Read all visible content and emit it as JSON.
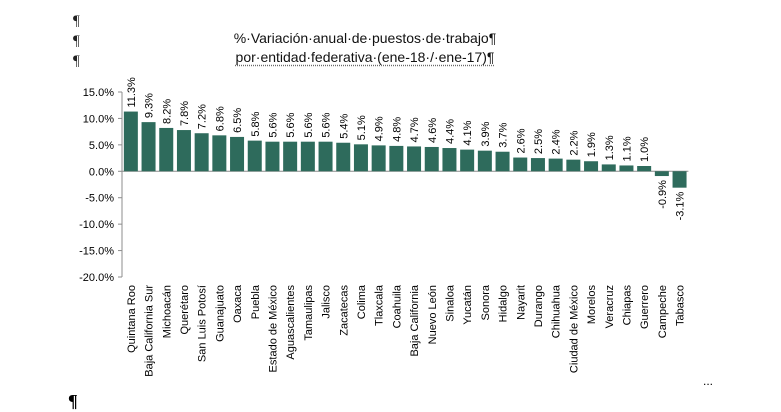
{
  "marks": {
    "pilcrow": "¶",
    "ellipsis": "..."
  },
  "chart_data": {
    "type": "bar",
    "title": "%·Variación·anual·de·puestos·de·trabajo¶",
    "subtitle": "por·entidad·federativa·(ene-18·/·ene-17)¶",
    "xlabel": "",
    "ylabel": "",
    "ylim": [
      -20,
      15
    ],
    "yticks": [
      "15.0%",
      "10.0%",
      "5.0%",
      "0.0%",
      "-5.0%",
      "-10.0%",
      "-15.0%",
      "-20.0%"
    ],
    "ytick_values": [
      15,
      10,
      5,
      0,
      -5,
      -10,
      -15,
      -20
    ],
    "categories": [
      "Quintana Roo",
      "Baja California Sur",
      "Michoacán",
      "Querétaro",
      "San Luis Potosí",
      "Guanajuato",
      "Oaxaca",
      "Puebla",
      "Estado de México",
      "Aguascalientes",
      "Tamaulipas",
      "Jalisco",
      "Zacatecas",
      "Colima",
      "Tlaxcala",
      "Coahuila",
      "Baja California",
      "Nuevo León",
      "Sinaloa",
      "Yucatán",
      "Sonora",
      "Hidalgo",
      "Nayarit",
      "Durango",
      "Chihuahua",
      "Ciudad de México",
      "Morelos",
      "Veracruz",
      "Chiapas",
      "Guerrero",
      "Campeche",
      "Tabasco"
    ],
    "values": [
      11.3,
      9.3,
      8.2,
      7.8,
      7.2,
      6.8,
      6.5,
      5.8,
      5.6,
      5.6,
      5.6,
      5.6,
      5.4,
      5.1,
      4.9,
      4.8,
      4.7,
      4.6,
      4.4,
      4.1,
      3.9,
      3.7,
      2.6,
      2.5,
      2.4,
      2.2,
      1.9,
      1.3,
      1.1,
      1.0,
      -0.9,
      -3.1
    ],
    "data_labels": [
      "11.3%",
      "9.3%",
      "8.2%",
      "7.8%",
      "7.2%",
      "6.8%",
      "6.5%",
      "5.8%",
      "5.6%",
      "5.6%",
      "5.6%",
      "5.6%",
      "5.4%",
      "5.1%",
      "4.9%",
      "4.8%",
      "4.7%",
      "4.6%",
      "4.4%",
      "4.1%",
      "3.9%",
      "3.7%",
      "2.6%",
      "2.5%",
      "2.4%",
      "2.2%",
      "1.9%",
      "1.3%",
      "1.1%",
      "1.0%",
      "-0.9%",
      "-3.1%"
    ],
    "bar_color": "#2e6b5c",
    "axis_color": "#8c8c8c",
    "grid": false,
    "legend": false
  }
}
